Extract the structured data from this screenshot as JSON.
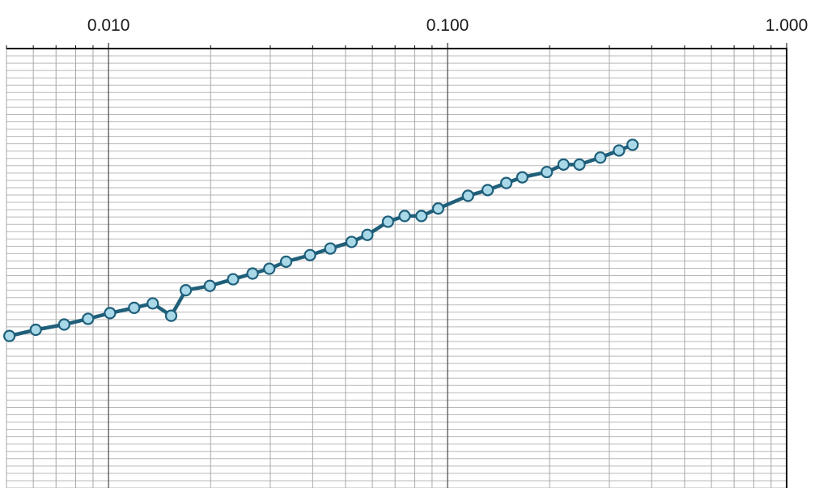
{
  "chart_data": {
    "type": "line",
    "title": "",
    "xlabel": "",
    "ylabel": "",
    "x_scale": "log",
    "xlim": [
      0.005,
      1.0
    ],
    "ylim": [
      0,
      1
    ],
    "x_tick_labels": [
      {
        "value": 0.01,
        "label": "0.010"
      },
      {
        "value": 0.1,
        "label": "0.100"
      },
      {
        "value": 1.0,
        "label": "1.000"
      }
    ],
    "x_axis_position": "top",
    "grid": true,
    "series": [
      {
        "line_color": "#1f5f7a",
        "marker_fill": "#a9d8e8",
        "points": [
          {
            "x": 0.0051,
            "y": 0.346
          },
          {
            "x": 0.0061,
            "y": 0.36
          },
          {
            "x": 0.0074,
            "y": 0.372
          },
          {
            "x": 0.0087,
            "y": 0.385
          },
          {
            "x": 0.0101,
            "y": 0.398
          },
          {
            "x": 0.0119,
            "y": 0.41
          },
          {
            "x": 0.0135,
            "y": 0.42
          },
          {
            "x": 0.0153,
            "y": 0.392
          },
          {
            "x": 0.0169,
            "y": 0.45
          },
          {
            "x": 0.0199,
            "y": 0.46
          },
          {
            "x": 0.0233,
            "y": 0.475
          },
          {
            "x": 0.0266,
            "y": 0.488
          },
          {
            "x": 0.0298,
            "y": 0.499
          },
          {
            "x": 0.0334,
            "y": 0.515
          },
          {
            "x": 0.0393,
            "y": 0.53
          },
          {
            "x": 0.0451,
            "y": 0.545
          },
          {
            "x": 0.0521,
            "y": 0.56
          },
          {
            "x": 0.058,
            "y": 0.576
          },
          {
            "x": 0.0667,
            "y": 0.606
          },
          {
            "x": 0.0747,
            "y": 0.619
          },
          {
            "x": 0.0837,
            "y": 0.619
          },
          {
            "x": 0.0938,
            "y": 0.636
          },
          {
            "x": 0.1149,
            "y": 0.665
          },
          {
            "x": 0.1313,
            "y": 0.678
          },
          {
            "x": 0.149,
            "y": 0.694
          },
          {
            "x": 0.1661,
            "y": 0.707
          },
          {
            "x": 0.1962,
            "y": 0.719
          },
          {
            "x": 0.2198,
            "y": 0.736
          },
          {
            "x": 0.2448,
            "y": 0.736
          },
          {
            "x": 0.2822,
            "y": 0.752
          },
          {
            "x": 0.3203,
            "y": 0.768
          },
          {
            "x": 0.3512,
            "y": 0.781
          }
        ]
      }
    ]
  }
}
